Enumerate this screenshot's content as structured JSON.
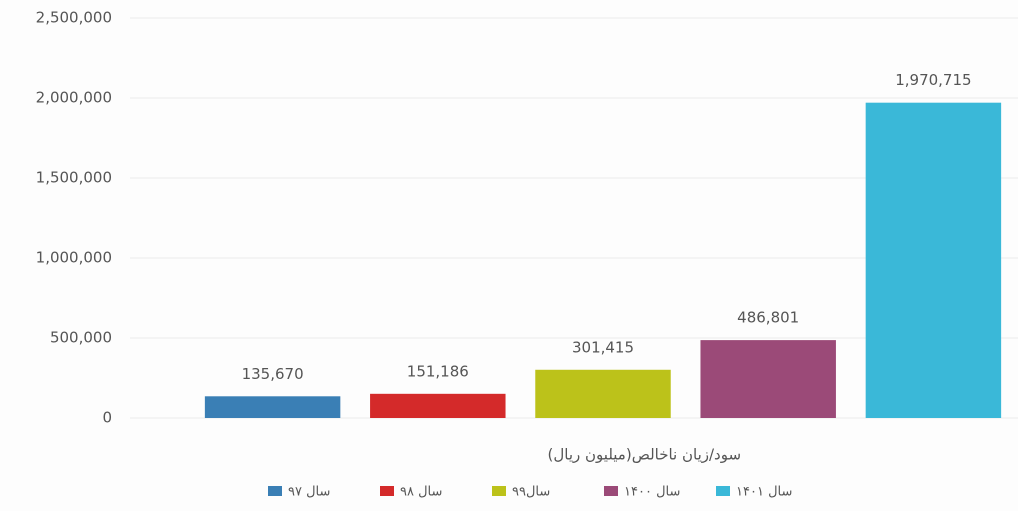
{
  "chart_data": {
    "type": "bar",
    "categories": [
      "سود/زیان ناخالص(میلیون ریال)"
    ],
    "series": [
      {
        "name": "سال ۹۷",
        "color": "#3a7fb5",
        "values": [
          135670
        ],
        "value_labels": [
          "135,670"
        ]
      },
      {
        "name": "سال ۹۸",
        "color": "#d42a2a",
        "values": [
          151186
        ],
        "value_labels": [
          "151,186"
        ]
      },
      {
        "name": "سال۹۹",
        "color": "#bcc21a",
        "values": [
          301415
        ],
        "value_labels": [
          "301,415"
        ]
      },
      {
        "name": "سال ۱۴۰۰",
        "color": "#9b4a78",
        "values": [
          486801
        ],
        "value_labels": [
          "486,801"
        ]
      },
      {
        "name": "سال ۱۴۰۱",
        "color": "#3ab8d8",
        "values": [
          1970715
        ],
        "value_labels": [
          "1,970,715"
        ]
      }
    ],
    "ylim": [
      0,
      2500000
    ],
    "yticks": [
      {
        "value": 0,
        "label": "0"
      },
      {
        "value": 500000,
        "label": "500,000"
      },
      {
        "value": 1000000,
        "label": "1,000,000"
      },
      {
        "value": 1500000,
        "label": "1,500,000"
      },
      {
        "value": 2000000,
        "label": "2,000,000"
      },
      {
        "value": 2500000,
        "label": "2,500,000"
      }
    ],
    "grid": true,
    "legend": "bottom"
  }
}
